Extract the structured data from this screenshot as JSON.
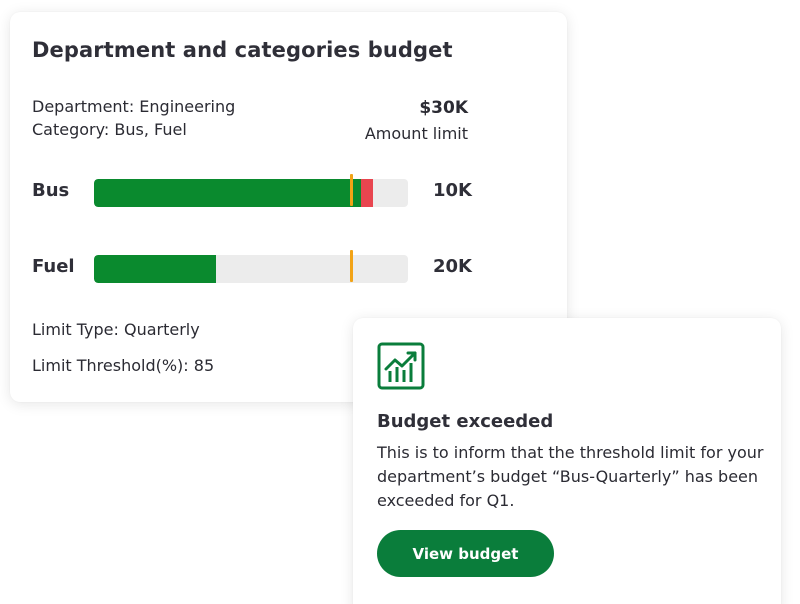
{
  "budget_card": {
    "title": "Department and categories budget",
    "department": "Department: Engineering",
    "category": "Category: Bus, Fuel",
    "amount": "$30K",
    "amount_caption": "Amount limit",
    "bars": [
      {
        "label": "Bus",
        "value_label": "10K",
        "fill_fraction": 0.85,
        "over_fraction": 0.04,
        "threshold_fraction": 0.82
      },
      {
        "label": "Fuel",
        "value_label": "20K",
        "fill_fraction": 0.39,
        "over_fraction": 0,
        "threshold_fraction": 0.82
      }
    ],
    "limit_type": "Limit Type: Quarterly",
    "limit_threshold": "Limit Threshold(%): 85"
  },
  "notification": {
    "icon": "chart-growth-icon",
    "title": "Budget exceeded",
    "body": "This is to inform that the threshold limit for your department’s budget “Bus-Quarterly” has been exceeded for Q1.",
    "button_label": "View budget"
  },
  "colors": {
    "fill_green": "#0a8a2e",
    "over_red": "#e8454f",
    "threshold_marker": "#f2a316",
    "button_green": "#0a7d3b",
    "track_gray": "#ececec"
  }
}
